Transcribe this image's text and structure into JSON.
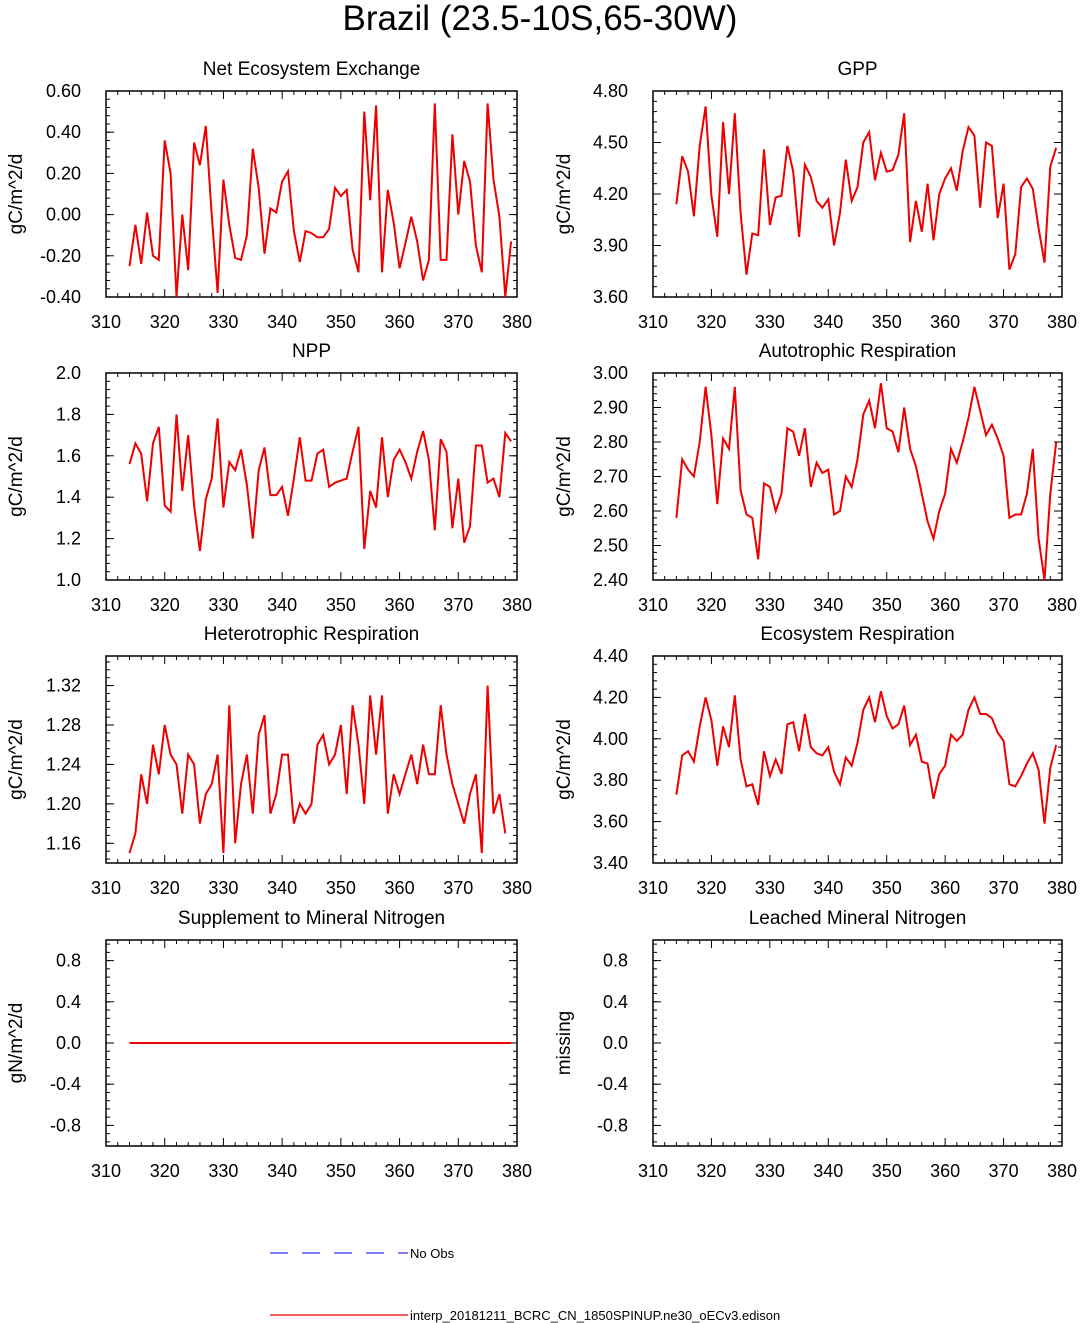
{
  "figure": {
    "title": "Brazil (23.5-10S,65-30W)"
  },
  "legend": {
    "items": [
      {
        "label": "No Obs",
        "color": "#3333ee",
        "style": "dashed"
      },
      {
        "label": "interp_20181211_BCRC_CN_1850SPINUP.ne30_oECv3.edison",
        "color": "#ee0000",
        "style": "solid"
      }
    ]
  },
  "chart_data": [
    {
      "type": "line",
      "title": "Net Ecosystem Exchange",
      "ylabel": "gC/m^2/d",
      "xlim": [
        310,
        380
      ],
      "ylim": [
        -0.4,
        0.6
      ],
      "xticks": [
        310,
        320,
        330,
        340,
        350,
        360,
        370,
        380
      ],
      "yticks": [
        -0.4,
        -0.2,
        0.0,
        0.2,
        0.4,
        0.6
      ],
      "ytick_labels": [
        "-0.40",
        "-0.20",
        "0.00",
        "0.20",
        "0.40",
        "0.60"
      ],
      "series": [
        {
          "color": "#ee0000",
          "x_start": 314,
          "x_step": 1,
          "values": [
            -0.25,
            -0.05,
            -0.24,
            0.01,
            -0.2,
            -0.22,
            0.36,
            0.2,
            -0.4,
            0.0,
            -0.27,
            0.35,
            0.24,
            0.43,
            0.0,
            -0.38,
            0.17,
            -0.05,
            -0.21,
            -0.22,
            -0.1,
            0.32,
            0.13,
            -0.19,
            0.03,
            0.01,
            0.16,
            0.21,
            -0.08,
            -0.23,
            -0.08,
            -0.09,
            -0.11,
            -0.11,
            -0.07,
            0.13,
            0.09,
            0.12,
            -0.17,
            -0.28,
            0.5,
            0.07,
            0.53,
            -0.28,
            0.12,
            -0.04,
            -0.26,
            -0.14,
            -0.01,
            -0.13,
            -0.32,
            -0.22,
            0.54,
            -0.22,
            -0.22,
            0.39,
            0.0,
            0.26,
            0.16,
            -0.15,
            -0.28,
            0.54,
            0.17,
            -0.01,
            -0.4,
            -0.13
          ]
        }
      ]
    },
    {
      "type": "line",
      "title": "GPP",
      "ylabel": "gC/m^2/d",
      "xlim": [
        310,
        380
      ],
      "ylim": [
        3.6,
        4.8
      ],
      "xticks": [
        310,
        320,
        330,
        340,
        350,
        360,
        370,
        380
      ],
      "yticks": [
        3.6,
        3.9,
        4.2,
        4.5,
        4.8
      ],
      "ytick_labels": [
        "3.60",
        "3.90",
        "4.20",
        "4.50",
        "4.80"
      ],
      "series": [
        {
          "color": "#ee0000",
          "x_start": 314,
          "x_step": 1,
          "values": [
            4.14,
            4.42,
            4.33,
            4.07,
            4.48,
            4.71,
            4.19,
            3.95,
            4.62,
            4.2,
            4.67,
            4.09,
            3.73,
            3.97,
            3.96,
            4.46,
            4.02,
            4.18,
            4.19,
            4.48,
            4.33,
            3.95,
            4.37,
            4.3,
            4.16,
            4.12,
            4.17,
            3.9,
            4.09,
            4.4,
            4.16,
            4.24,
            4.5,
            4.56,
            4.28,
            4.44,
            4.33,
            4.34,
            4.43,
            4.67,
            3.92,
            4.16,
            3.98,
            4.26,
            3.93,
            4.2,
            4.29,
            4.35,
            4.22,
            4.45,
            4.59,
            4.54,
            4.12,
            4.5,
            4.48,
            4.06,
            4.26,
            3.76,
            3.85,
            4.24,
            4.29,
            4.23,
            4.0,
            3.8,
            4.36,
            4.47
          ]
        }
      ]
    },
    {
      "type": "line",
      "title": "NPP",
      "ylabel": "gC/m^2/d",
      "xlim": [
        310,
        380
      ],
      "ylim": [
        1.0,
        2.0
      ],
      "xticks": [
        310,
        320,
        330,
        340,
        350,
        360,
        370,
        380
      ],
      "yticks": [
        1.0,
        1.2,
        1.4,
        1.6,
        1.8,
        2.0
      ],
      "ytick_labels": [
        "1.0",
        "1.2",
        "1.4",
        "1.6",
        "1.8",
        "2.0"
      ],
      "series": [
        {
          "color": "#ee0000",
          "x_start": 314,
          "x_step": 1,
          "values": [
            1.56,
            1.66,
            1.61,
            1.38,
            1.66,
            1.74,
            1.36,
            1.33,
            1.8,
            1.43,
            1.7,
            1.36,
            1.14,
            1.39,
            1.49,
            1.78,
            1.35,
            1.57,
            1.53,
            1.63,
            1.46,
            1.2,
            1.53,
            1.64,
            1.41,
            1.41,
            1.45,
            1.31,
            1.49,
            1.69,
            1.48,
            1.48,
            1.61,
            1.63,
            1.45,
            1.47,
            1.48,
            1.49,
            1.62,
            1.74,
            1.15,
            1.43,
            1.35,
            1.69,
            1.4,
            1.58,
            1.63,
            1.57,
            1.49,
            1.62,
            1.72,
            1.58,
            1.24,
            1.68,
            1.62,
            1.25,
            1.49,
            1.18,
            1.26,
            1.65,
            1.65,
            1.47,
            1.49,
            1.4,
            1.71,
            1.67
          ]
        }
      ]
    },
    {
      "type": "line",
      "title": "Autotrophic Respiration",
      "ylabel": "gC/m^2/d",
      "xlim": [
        310,
        380
      ],
      "ylim": [
        2.4,
        3.0
      ],
      "xticks": [
        310,
        320,
        330,
        340,
        350,
        360,
        370,
        380
      ],
      "yticks": [
        2.4,
        2.5,
        2.6,
        2.7,
        2.8,
        2.9,
        3.0
      ],
      "ytick_labels": [
        "2.40",
        "2.50",
        "2.60",
        "2.70",
        "2.80",
        "2.90",
        "3.00"
      ],
      "series": [
        {
          "color": "#ee0000",
          "x_start": 314,
          "x_step": 1,
          "values": [
            2.58,
            2.75,
            2.72,
            2.7,
            2.8,
            2.96,
            2.82,
            2.62,
            2.81,
            2.78,
            2.96,
            2.66,
            2.59,
            2.58,
            2.46,
            2.68,
            2.67,
            2.6,
            2.65,
            2.84,
            2.83,
            2.76,
            2.84,
            2.67,
            2.74,
            2.71,
            2.72,
            2.59,
            2.6,
            2.7,
            2.67,
            2.75,
            2.88,
            2.92,
            2.84,
            2.97,
            2.84,
            2.83,
            2.77,
            2.9,
            2.78,
            2.73,
            2.65,
            2.57,
            2.52,
            2.6,
            2.65,
            2.78,
            2.74,
            2.8,
            2.87,
            2.96,
            2.89,
            2.82,
            2.85,
            2.81,
            2.76,
            2.58,
            2.59,
            2.59,
            2.65,
            2.78,
            2.52,
            2.4,
            2.65,
            2.8
          ]
        }
      ]
    },
    {
      "type": "line",
      "title": "Heterotrophic Respiration",
      "ylabel": "gC/m^2/d",
      "xlim": [
        310,
        380
      ],
      "ylim": [
        1.14,
        1.35
      ],
      "xticks": [
        310,
        320,
        330,
        340,
        350,
        360,
        370,
        380
      ],
      "yticks": [
        1.16,
        1.2,
        1.24,
        1.28,
        1.32
      ],
      "ytick_labels": [
        "1.16",
        "1.20",
        "1.24",
        "1.28",
        "1.32"
      ],
      "series": [
        {
          "color": "#ee0000",
          "x_start": 314,
          "x_step": 1,
          "values": [
            1.15,
            1.17,
            1.23,
            1.2,
            1.26,
            1.23,
            1.28,
            1.25,
            1.24,
            1.19,
            1.25,
            1.24,
            1.18,
            1.21,
            1.22,
            1.25,
            1.15,
            1.3,
            1.16,
            1.22,
            1.25,
            1.19,
            1.27,
            1.29,
            1.19,
            1.21,
            1.25,
            1.25,
            1.18,
            1.2,
            1.19,
            1.2,
            1.26,
            1.27,
            1.24,
            1.25,
            1.28,
            1.21,
            1.3,
            1.26,
            1.2,
            1.31,
            1.25,
            1.31,
            1.19,
            1.23,
            1.21,
            1.23,
            1.25,
            1.22,
            1.26,
            1.23,
            1.23,
            1.3,
            1.25,
            1.22,
            1.2,
            1.18,
            1.21,
            1.23,
            1.15,
            1.32,
            1.19,
            1.21,
            1.17
          ]
        }
      ]
    },
    {
      "type": "line",
      "title": "Ecosystem Respiration",
      "ylabel": "gC/m^2/d",
      "xlim": [
        310,
        380
      ],
      "ylim": [
        3.4,
        4.4
      ],
      "xticks": [
        310,
        320,
        330,
        340,
        350,
        360,
        370,
        380
      ],
      "yticks": [
        3.4,
        3.6,
        3.8,
        4.0,
        4.2,
        4.4
      ],
      "ytick_labels": [
        "3.40",
        "3.60",
        "3.80",
        "4.00",
        "4.20",
        "4.40"
      ],
      "series": [
        {
          "color": "#ee0000",
          "x_start": 314,
          "x_step": 1,
          "values": [
            3.73,
            3.92,
            3.94,
            3.89,
            4.06,
            4.2,
            4.09,
            3.87,
            4.06,
            3.96,
            4.21,
            3.9,
            3.77,
            3.78,
            3.68,
            3.94,
            3.82,
            3.9,
            3.83,
            4.07,
            4.08,
            3.94,
            4.12,
            3.96,
            3.93,
            3.92,
            3.96,
            3.84,
            3.78,
            3.91,
            3.87,
            3.98,
            4.14,
            4.2,
            4.08,
            4.23,
            4.11,
            4.05,
            4.07,
            4.16,
            3.97,
            4.02,
            3.89,
            3.88,
            3.71,
            3.83,
            3.87,
            4.02,
            3.99,
            4.02,
            4.14,
            4.2,
            4.12,
            4.12,
            4.1,
            4.03,
            3.99,
            3.78,
            3.77,
            3.82,
            3.88,
            3.93,
            3.85,
            3.59,
            3.86,
            3.97
          ]
        }
      ]
    },
    {
      "type": "line",
      "title": "Supplement to Mineral Nitrogen",
      "ylabel": "gN/m^2/d",
      "xlim": [
        310,
        380
      ],
      "ylim": [
        -1.0,
        1.0
      ],
      "xticks": [
        310,
        320,
        330,
        340,
        350,
        360,
        370,
        380
      ],
      "yticks": [
        -0.8,
        -0.4,
        0.0,
        0.4,
        0.8
      ],
      "ytick_labels": [
        "-0.8",
        "-0.4",
        "0.0",
        "0.4",
        "0.8"
      ],
      "series": [
        {
          "color": "#ee0000",
          "x": [
            314,
            379
          ],
          "values": [
            0.0,
            0.0
          ]
        }
      ]
    },
    {
      "type": "line",
      "title": "Leached Mineral Nitrogen",
      "ylabel": "missing",
      "xlim": [
        310,
        380
      ],
      "ylim": [
        -1.0,
        1.0
      ],
      "xticks": [
        310,
        320,
        330,
        340,
        350,
        360,
        370,
        380
      ],
      "yticks": [
        -0.8,
        -0.4,
        0.0,
        0.4,
        0.8
      ],
      "ytick_labels": [
        "-0.8",
        "-0.4",
        "0.0",
        "0.4",
        "0.8"
      ],
      "series": []
    }
  ]
}
